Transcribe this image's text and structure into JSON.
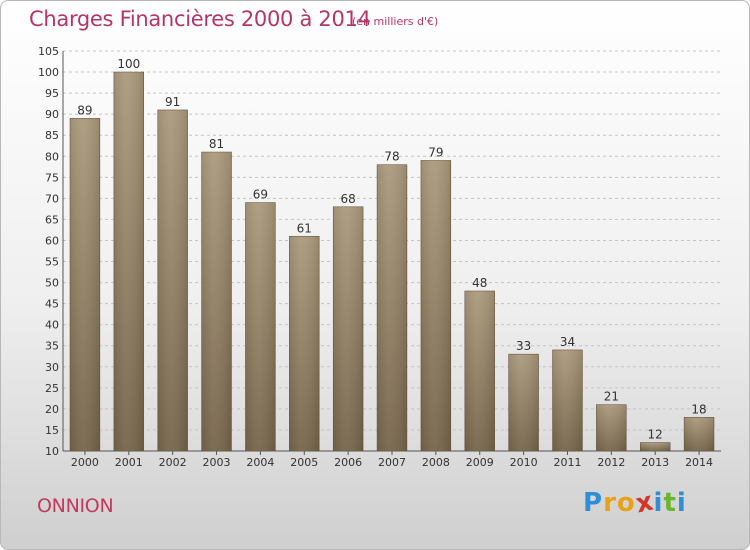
{
  "header": {
    "title": "Charges Financières 2000 à 2014",
    "subtitle": "(en milliers d'€)"
  },
  "footer": {
    "commune": "ONNION",
    "logo": [
      "P",
      "r",
      "o",
      "x",
      "i",
      "t",
      "i"
    ]
  },
  "colors": {
    "title": "#b5356a",
    "bar_light": "#a8977a",
    "bar_dark": "#7a6a50",
    "logo": [
      "#2f8fd6",
      "#e8a21a",
      "#e8a21a",
      "#d4342c",
      "#2f8fd6",
      "#6ab52e",
      "#2f8fd6"
    ]
  },
  "chart_data": {
    "type": "bar",
    "title": "Charges Financières 2000 à 2014",
    "subtitle": "(en milliers d'€)",
    "categories": [
      "2000",
      "2001",
      "2002",
      "2003",
      "2004",
      "2005",
      "2006",
      "2007",
      "2008",
      "2009",
      "2010",
      "2011",
      "2012",
      "2013",
      "2014"
    ],
    "values": [
      89,
      100,
      91,
      81,
      69,
      61,
      68,
      78,
      79,
      48,
      33,
      34,
      21,
      12,
      18
    ],
    "ylim": [
      10,
      105
    ],
    "yticks": [
      10,
      15,
      20,
      25,
      30,
      35,
      40,
      45,
      50,
      55,
      60,
      65,
      70,
      75,
      80,
      85,
      90,
      95,
      100,
      105
    ],
    "grid": true
  }
}
